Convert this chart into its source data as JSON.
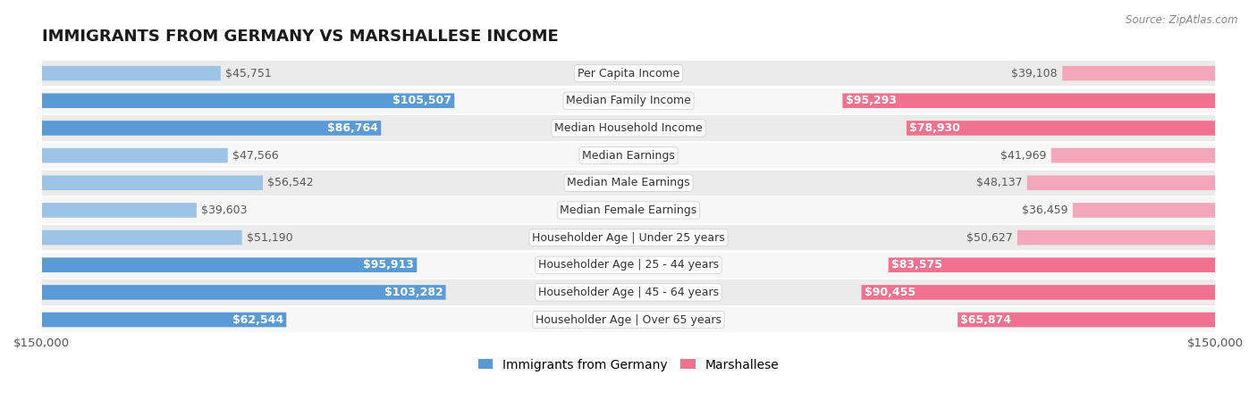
{
  "title": "IMMIGRANTS FROM GERMANY VS MARSHALLESE INCOME",
  "source": "Source: ZipAtlas.com",
  "categories": [
    "Per Capita Income",
    "Median Family Income",
    "Median Household Income",
    "Median Earnings",
    "Median Male Earnings",
    "Median Female Earnings",
    "Householder Age | Under 25 years",
    "Householder Age | 25 - 44 years",
    "Householder Age | 45 - 64 years",
    "Householder Age | Over 65 years"
  ],
  "germany_values": [
    45751,
    105507,
    86764,
    47566,
    56542,
    39603,
    51190,
    95913,
    103282,
    62544
  ],
  "marshallese_values": [
    39108,
    95293,
    78930,
    41969,
    48137,
    36459,
    50627,
    83575,
    90455,
    65874
  ],
  "germany_labels": [
    "$45,751",
    "$105,507",
    "$86,764",
    "$47,566",
    "$56,542",
    "$39,603",
    "$51,190",
    "$95,913",
    "$103,282",
    "$62,544"
  ],
  "marshallese_labels": [
    "$39,108",
    "$95,293",
    "$78,930",
    "$41,969",
    "$48,137",
    "$36,459",
    "$50,627",
    "$83,575",
    "$90,455",
    "$65,874"
  ],
  "germany_color_large": "#5b9bd5",
  "germany_color_small": "#9dc3e6",
  "marshallese_color_large": "#f0728f",
  "marshallese_color_small": "#f4a7bb",
  "label_color_inside": "#ffffff",
  "label_color_outside": "#595959",
  "max_value": 150000,
  "background_color": "#ffffff",
  "row_bg_odd": "#ebebeb",
  "row_bg_even": "#f7f7f7",
  "label_fontsize": 9.0,
  "category_fontsize": 9.0,
  "title_fontsize": 13,
  "inside_threshold": 60000
}
